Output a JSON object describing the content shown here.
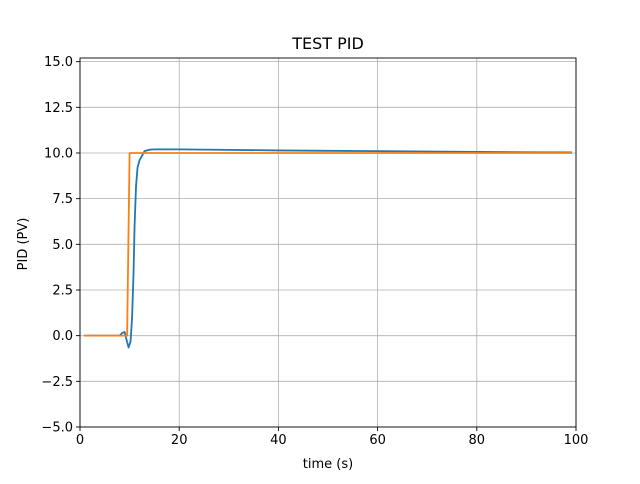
{
  "chart_data": {
    "type": "line",
    "title": "TEST PID",
    "xlabel": "time (s)",
    "ylabel": "PID (PV)",
    "xlim": [
      0,
      100
    ],
    "ylim": [
      -5,
      15.2
    ],
    "xticks": [
      0,
      20,
      40,
      60,
      80,
      100
    ],
    "xtick_labels": [
      "0",
      "20",
      "40",
      "60",
      "80",
      "100"
    ],
    "yticks": [
      -5,
      -2.5,
      0,
      2.5,
      5,
      7.5,
      10,
      12.5,
      15
    ],
    "ytick_labels": [
      "−5.0",
      "−2.5",
      "0.0",
      "2.5",
      "5.0",
      "7.5",
      "10.0",
      "12.5",
      "15.0"
    ],
    "grid": true,
    "legend": "none",
    "series": [
      {
        "color": "#1f77b4",
        "x": [
          1,
          2,
          3,
          4,
          5,
          6,
          7,
          8,
          8.5,
          9,
          9.5,
          9.8,
          10.2,
          10.5,
          10.8,
          11,
          11.3,
          11.6,
          12,
          13,
          14,
          15,
          16,
          20,
          30,
          40,
          50,
          60,
          70,
          80,
          90,
          99
        ],
        "y": [
          0,
          0,
          0,
          0,
          0,
          0,
          0,
          0,
          0.15,
          0.2,
          -0.35,
          -0.65,
          -0.3,
          1.0,
          3.5,
          6.0,
          8.2,
          9.2,
          9.6,
          10.1,
          10.18,
          10.2,
          10.2,
          10.2,
          10.17,
          10.14,
          10.12,
          10.1,
          10.08,
          10.06,
          10.04,
          10.03
        ]
      },
      {
        "color": "#ff7f0e",
        "x": [
          1,
          2,
          4,
          6,
          8,
          9,
          9.5,
          10,
          12,
          15,
          20,
          40,
          60,
          80,
          99
        ],
        "y": [
          0,
          0,
          0,
          0,
          0,
          0,
          0,
          10,
          10,
          10,
          10,
          10,
          10,
          10,
          10
        ]
      }
    ]
  }
}
